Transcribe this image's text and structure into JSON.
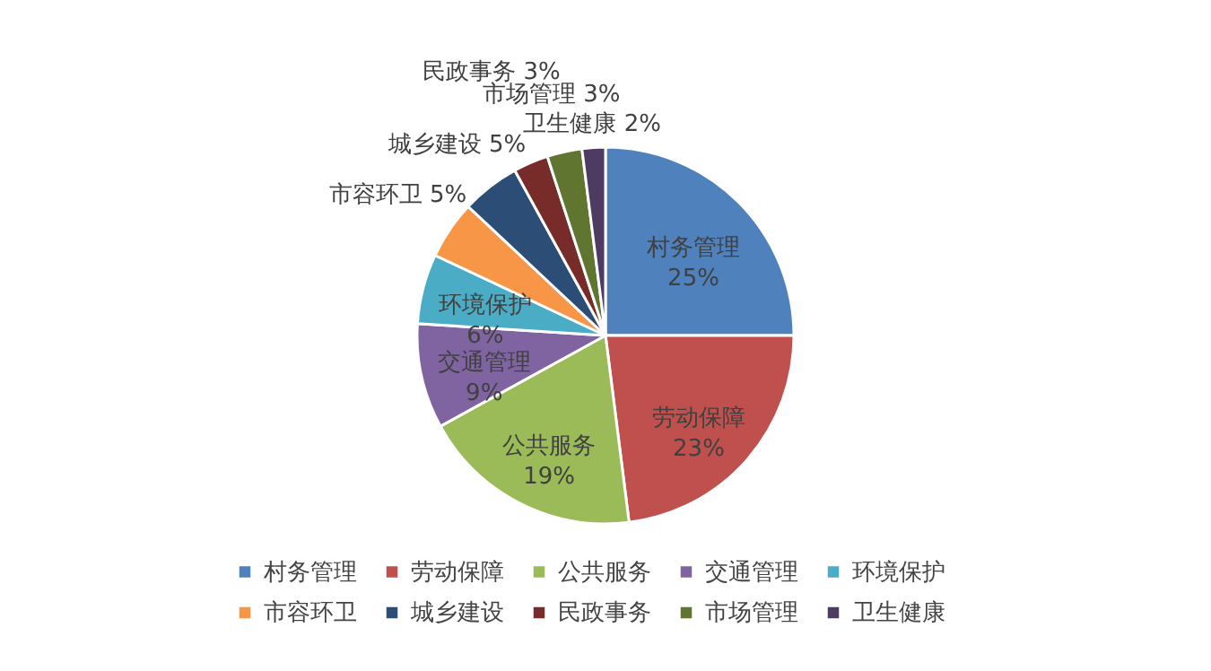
{
  "chart_data": {
    "type": "pie",
    "categories": [
      "村务管理",
      "劳动保障",
      "公共服务",
      "交通管理",
      "环境保护",
      "市容环卫",
      "城乡建设",
      "民政事务",
      "市场管理",
      "卫生健康"
    ],
    "values": [
      25,
      23,
      19,
      9,
      6,
      5,
      5,
      3,
      3,
      2
    ],
    "value_labels": [
      "25%",
      "23%",
      "19%",
      "9%",
      "6%",
      "5%",
      "5%",
      "3%",
      "3%",
      "2%"
    ],
    "colors": [
      "#4f81bd",
      "#c0504d",
      "#9bbb59",
      "#8064a2",
      "#4bacc6",
      "#f79646",
      "#2c4d75",
      "#772c2a",
      "#5f7530",
      "#4d3b62"
    ],
    "legend": "bottom"
  }
}
